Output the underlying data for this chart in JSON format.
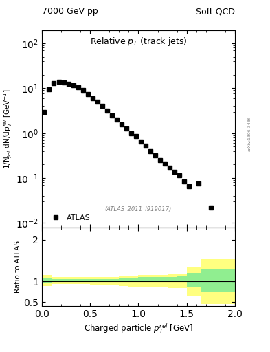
{
  "title_left": "7000 GeV pp",
  "title_right": "Soft QCD",
  "main_title": "Relative $p_T$ (track jets)",
  "xlabel": "Charged particle $p_T^{rel}$ [GeV]",
  "ylabel_main": "1/N$_{jet}$ dN/dp$_T^{rel}$ [GeV$^{-1}$]",
  "ylabel_ratio": "Ratio to ATLAS",
  "watermark": "(ATLAS_2011_I919017)",
  "arxiv": "arXiv:1306.3436",
  "legend_label": "ATLAS",
  "data_x": [
    0.025,
    0.075,
    0.125,
    0.175,
    0.225,
    0.275,
    0.325,
    0.375,
    0.425,
    0.475,
    0.525,
    0.575,
    0.625,
    0.675,
    0.725,
    0.775,
    0.825,
    0.875,
    0.925,
    0.975,
    1.025,
    1.075,
    1.125,
    1.175,
    1.225,
    1.275,
    1.325,
    1.375,
    1.425,
    1.475,
    1.525,
    1.625,
    1.75
  ],
  "data_y": [
    3.0,
    9.5,
    13.0,
    14.0,
    13.5,
    12.5,
    11.5,
    10.5,
    9.0,
    7.5,
    6.0,
    5.0,
    4.0,
    3.2,
    2.5,
    2.0,
    1.55,
    1.25,
    1.0,
    0.85,
    0.65,
    0.52,
    0.4,
    0.32,
    0.25,
    0.21,
    0.17,
    0.135,
    0.115,
    0.085,
    0.065,
    0.075,
    0.022
  ],
  "ratio_x_edges": [
    0.0,
    0.1,
    0.2,
    0.3,
    0.4,
    0.5,
    0.6,
    0.7,
    0.8,
    0.9,
    1.0,
    1.1,
    1.2,
    1.3,
    1.4,
    1.5,
    1.65,
    2.0
  ],
  "ratio_green_lo": [
    0.95,
    0.98,
    0.98,
    0.98,
    0.98,
    0.98,
    0.98,
    0.98,
    0.98,
    0.98,
    0.98,
    0.98,
    0.98,
    0.98,
    0.98,
    0.85,
    0.75,
    0.75
  ],
  "ratio_green_hi": [
    1.08,
    1.06,
    1.06,
    1.05,
    1.05,
    1.05,
    1.06,
    1.06,
    1.07,
    1.09,
    1.1,
    1.1,
    1.1,
    1.1,
    1.12,
    1.2,
    1.3,
    1.3
  ],
  "ratio_yellow_lo": [
    0.88,
    0.93,
    0.93,
    0.93,
    0.93,
    0.92,
    0.91,
    0.9,
    0.88,
    0.86,
    0.85,
    0.85,
    0.85,
    0.84,
    0.83,
    0.65,
    0.45,
    0.45
  ],
  "ratio_yellow_hi": [
    1.15,
    1.1,
    1.1,
    1.1,
    1.1,
    1.1,
    1.1,
    1.1,
    1.12,
    1.14,
    1.15,
    1.15,
    1.15,
    1.18,
    1.18,
    1.35,
    1.55,
    1.55
  ],
  "xlim": [
    0.0,
    2.0
  ],
  "ylim_main": [
    0.008,
    200
  ],
  "ylim_ratio": [
    0.4,
    2.3
  ],
  "ratio_yticks": [
    0.5,
    1.0,
    2.0
  ],
  "ratio_yticklabels": [
    "0.5",
    "1",
    "2"
  ],
  "color_data": "black",
  "color_green": "#90EE90",
  "color_yellow": "#FFFF80",
  "marker_size": 4,
  "bg_color": "white"
}
